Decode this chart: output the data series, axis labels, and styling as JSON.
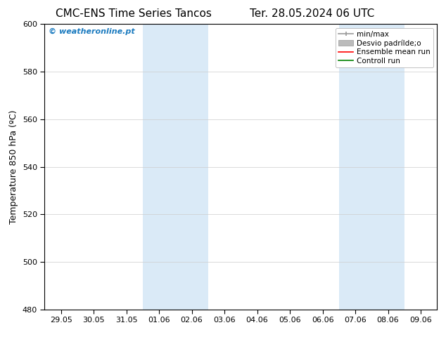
{
  "title_left": "CMC-ENS Time Series Tancos",
  "title_right": "Ter. 28.05.2024 06 UTC",
  "ylabel": "Temperature 850 hPa (ºC)",
  "ylim": [
    480,
    600
  ],
  "yticks": [
    480,
    500,
    520,
    540,
    560,
    580,
    600
  ],
  "xtick_labels": [
    "29.05",
    "30.05",
    "31.05",
    "01.06",
    "02.06",
    "03.06",
    "04.06",
    "05.06",
    "06.06",
    "07.06",
    "08.06",
    "09.06"
  ],
  "shaded_ranges": [
    [
      3,
      5
    ],
    [
      9,
      11
    ]
  ],
  "shaded_color": "#daeaf7",
  "watermark_text": "© weatheronline.pt",
  "watermark_color": "#1a7abf",
  "bg_color": "#ffffff",
  "legend_labels": [
    "min/max",
    "Desvio padrílde;o",
    "Ensemble mean run",
    "Controll run"
  ],
  "legend_colors": [
    "#999999",
    "#bbbbbb",
    "#ff0000",
    "#008000"
  ],
  "title_fontsize": 11,
  "tick_fontsize": 8,
  "ylabel_fontsize": 9,
  "legend_fontsize": 7.5
}
